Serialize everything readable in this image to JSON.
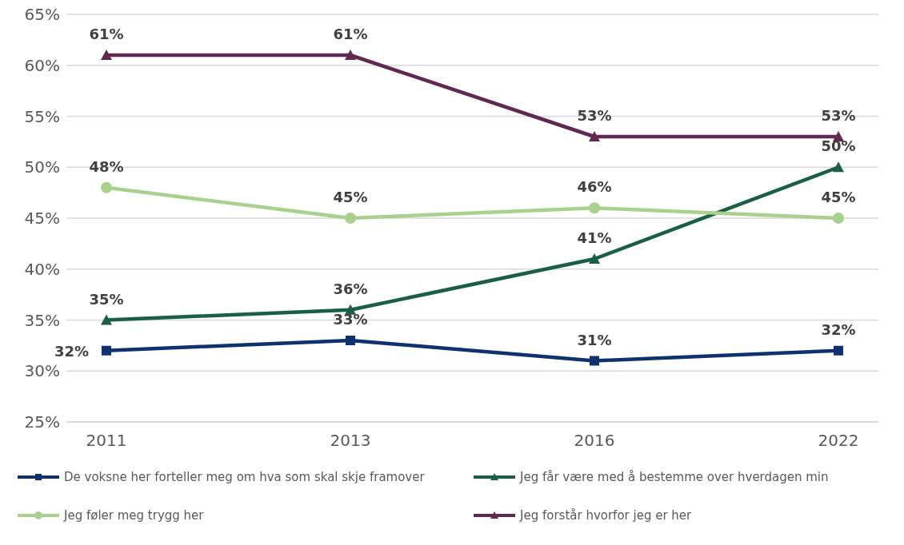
{
  "chart_data": {
    "type": "line",
    "categories": [
      "2011",
      "2013",
      "2016",
      "2022"
    ],
    "series": [
      {
        "name": "De voksne her forteller meg om hva som skal skje framover",
        "color": "#0e3270",
        "marker": "square",
        "values": [
          32,
          33,
          31,
          32
        ],
        "value_labels": [
          "32%",
          "33%",
          "31%",
          "32%"
        ]
      },
      {
        "name": "Jeg får være med å bestemme over hverdagen min",
        "color": "#1a5e44",
        "marker": "triangle",
        "values": [
          35,
          36,
          41,
          50
        ],
        "value_labels": [
          "35%",
          "36%",
          "41%",
          "50%"
        ]
      },
      {
        "name": "Jeg føler meg trygg her",
        "color": "#a9d18e",
        "marker": "circle",
        "values": [
          48,
          45,
          46,
          45
        ],
        "value_labels": [
          "48%",
          "45%",
          "46%",
          "45%"
        ]
      },
      {
        "name": "Jeg forstår hvorfor jeg er her",
        "color": "#63284f",
        "marker": "triangle",
        "values": [
          61,
          61,
          53,
          53
        ],
        "value_labels": [
          "61%",
          "61%",
          "53%",
          "53%"
        ]
      }
    ],
    "ylim": [
      25,
      65
    ],
    "yticks": [
      {
        "value": 25,
        "label": "25%"
      },
      {
        "value": 30,
        "label": "30%"
      },
      {
        "value": 35,
        "label": "35%"
      },
      {
        "value": 40,
        "label": "40%"
      },
      {
        "value": 45,
        "label": "45%"
      },
      {
        "value": 50,
        "label": "50%"
      },
      {
        "value": 55,
        "label": "55%"
      },
      {
        "value": 60,
        "label": "60%"
      },
      {
        "value": 65,
        "label": "65%"
      }
    ],
    "grid": "y",
    "legend": "bottom",
    "line_style": "solid"
  }
}
